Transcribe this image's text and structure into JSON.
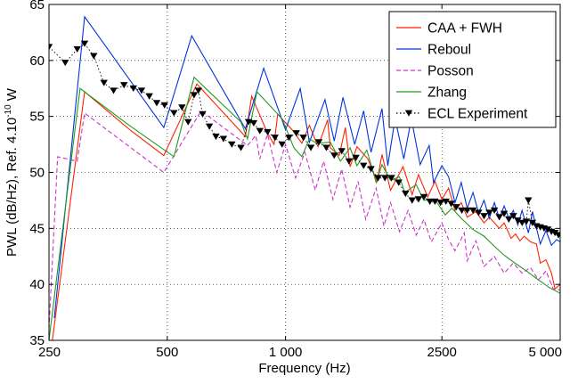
{
  "chart_data": {
    "type": "line",
    "xlabel": "Frequency (Hz)",
    "ylabel_prefix": "PWL (dB/Hz), Ref. 4.10",
    "ylabel_exp": "-10",
    "ylabel_suffix": " W",
    "x_scale": "log",
    "xlim": [
      250,
      5000
    ],
    "ylim": [
      35,
      65
    ],
    "grid": true,
    "legend_position": "top-right",
    "x_ticks": [
      {
        "value": 250,
        "label": "250"
      },
      {
        "value": 500,
        "label": "500"
      },
      {
        "value": 1000,
        "label": "1 000"
      },
      {
        "value": 2500,
        "label": "2500"
      },
      {
        "value": 5000,
        "label": "5 000"
      }
    ],
    "y_ticks": [
      {
        "value": 35,
        "label": "35"
      },
      {
        "value": 40,
        "label": "40"
      },
      {
        "value": 45,
        "label": "45"
      },
      {
        "value": 50,
        "label": "50"
      },
      {
        "value": 55,
        "label": "55"
      },
      {
        "value": 60,
        "label": "60"
      },
      {
        "value": 65,
        "label": "65"
      }
    ],
    "series": [
      {
        "name": "CAA + FWH",
        "color": "#ff2200",
        "dash": "",
        "marker": "none",
        "points": [
          [
            255,
            35
          ],
          [
            308,
            57.2
          ],
          [
            405,
            53.7
          ],
          [
            490,
            51.5
          ],
          [
            595,
            57.9
          ],
          [
            790,
            53.2
          ],
          [
            820,
            56.8
          ],
          [
            900,
            53.5
          ],
          [
            935,
            52.5
          ],
          [
            955,
            55.2
          ],
          [
            1040,
            53.8
          ],
          [
            1100,
            52.6
          ],
          [
            1150,
            54.2
          ],
          [
            1210,
            52.3
          ],
          [
            1280,
            54.7
          ],
          [
            1300,
            52.2
          ],
          [
            1370,
            51.5
          ],
          [
            1420,
            54
          ],
          [
            1460,
            50.5
          ],
          [
            1520,
            52.3
          ],
          [
            1620,
            51.2
          ],
          [
            1710,
            49.2
          ],
          [
            1760,
            51.6
          ],
          [
            1850,
            48.4
          ],
          [
            1990,
            50.5
          ],
          [
            2100,
            48
          ],
          [
            2180,
            49.8
          ],
          [
            2300,
            47.8
          ],
          [
            2400,
            49.2
          ],
          [
            2500,
            47.6
          ],
          [
            2600,
            48.6
          ],
          [
            2700,
            46.6
          ],
          [
            2800,
            47.3
          ],
          [
            2900,
            46
          ],
          [
            3050,
            46.5
          ],
          [
            3200,
            45.5
          ],
          [
            3300,
            46
          ],
          [
            3500,
            45
          ],
          [
            3600,
            45.5
          ],
          [
            3750,
            44.1
          ],
          [
            3850,
            44.5
          ],
          [
            3950,
            43.9
          ],
          [
            4050,
            44.3
          ],
          [
            4200,
            43.8
          ],
          [
            4350,
            43.6
          ],
          [
            4450,
            41.9
          ],
          [
            4600,
            42.2
          ],
          [
            4750,
            41
          ],
          [
            4850,
            39.6
          ],
          [
            5000,
            40
          ]
        ]
      },
      {
        "name": "Reboul",
        "color": "#0033dd",
        "dash": "",
        "marker": "none",
        "points": [
          [
            258,
            37
          ],
          [
            308,
            63.9
          ],
          [
            490,
            54
          ],
          [
            577,
            62.2
          ],
          [
            790,
            53.9
          ],
          [
            880,
            59.3
          ],
          [
            1000,
            53.8
          ],
          [
            1090,
            57.5
          ],
          [
            1150,
            52.7
          ],
          [
            1260,
            56.5
          ],
          [
            1330,
            52.8
          ],
          [
            1400,
            56.7
          ],
          [
            1500,
            52.5
          ],
          [
            1580,
            55.5
          ],
          [
            1650,
            51.8
          ],
          [
            1760,
            55.7
          ],
          [
            1820,
            50.6
          ],
          [
            1900,
            54.8
          ],
          [
            2000,
            51.2
          ],
          [
            2090,
            54.8
          ],
          [
            2200,
            50.7
          ],
          [
            2320,
            52.4
          ],
          [
            2380,
            49.1
          ],
          [
            2500,
            50.6
          ],
          [
            2600,
            49.6
          ],
          [
            2700,
            47.3
          ],
          [
            2800,
            49.1
          ],
          [
            2900,
            46.8
          ],
          [
            3000,
            48.2
          ],
          [
            3100,
            46.4
          ],
          [
            3200,
            47.5
          ],
          [
            3300,
            45.9
          ],
          [
            3400,
            47.3
          ],
          [
            3500,
            45.9
          ],
          [
            3600,
            47
          ],
          [
            3700,
            45.9
          ],
          [
            3800,
            46.6
          ],
          [
            3900,
            45.3
          ],
          [
            4000,
            46.6
          ],
          [
            4150,
            44.6
          ],
          [
            4250,
            46.5
          ],
          [
            4450,
            43.6
          ],
          [
            4600,
            44.8
          ],
          [
            4750,
            43.5
          ],
          [
            4900,
            44
          ],
          [
            5000,
            43.8
          ]
        ]
      },
      {
        "name": "Posson",
        "color": "#cc33cc",
        "dash": "5,3",
        "marker": "none",
        "points": [
          [
            250,
            36
          ],
          [
            263,
            51.4
          ],
          [
            295,
            51
          ],
          [
            308,
            55.3
          ],
          [
            490,
            50
          ],
          [
            610,
            55.5
          ],
          [
            800,
            52.4
          ],
          [
            840,
            53.3
          ],
          [
            860,
            51.2
          ],
          [
            900,
            53.4
          ],
          [
            950,
            50
          ],
          [
            1000,
            52.5
          ],
          [
            1060,
            49.5
          ],
          [
            1120,
            51.8
          ],
          [
            1190,
            48.4
          ],
          [
            1250,
            51
          ],
          [
            1320,
            47.6
          ],
          [
            1390,
            50.3
          ],
          [
            1460,
            46.9
          ],
          [
            1530,
            49.2
          ],
          [
            1600,
            45.8
          ],
          [
            1700,
            48.6
          ],
          [
            1780,
            45.2
          ],
          [
            1850,
            47.3
          ],
          [
            1950,
            44.7
          ],
          [
            2050,
            46.6
          ],
          [
            2150,
            44.4
          ],
          [
            2250,
            45.8
          ],
          [
            2350,
            43.8
          ],
          [
            2500,
            45.5
          ],
          [
            2600,
            44
          ],
          [
            2700,
            43
          ],
          [
            2850,
            44.6
          ],
          [
            2900,
            42.1
          ],
          [
            3050,
            43.9
          ],
          [
            3200,
            41.6
          ],
          [
            3400,
            42.5
          ],
          [
            3600,
            41
          ],
          [
            3800,
            41.9
          ],
          [
            4000,
            41
          ],
          [
            4200,
            41.5
          ],
          [
            4400,
            40.4
          ],
          [
            4600,
            41.2
          ],
          [
            4800,
            39.6
          ],
          [
            5000,
            39.5
          ]
        ]
      },
      {
        "name": "Zhang",
        "color": "#229922",
        "dash": "",
        "marker": "none",
        "points": [
          [
            250,
            35
          ],
          [
            300,
            57.5
          ],
          [
            400,
            54.2
          ],
          [
            520,
            51.4
          ],
          [
            585,
            58.5
          ],
          [
            770,
            54.5
          ],
          [
            800,
            53
          ],
          [
            845,
            57.2
          ],
          [
            980,
            54.8
          ],
          [
            1050,
            52.2
          ],
          [
            1100,
            51.4
          ],
          [
            1150,
            53
          ],
          [
            1200,
            52.6
          ],
          [
            1300,
            52.7
          ],
          [
            1380,
            51
          ],
          [
            1460,
            52.2
          ],
          [
            1520,
            50.6
          ],
          [
            1610,
            52
          ],
          [
            1700,
            49.1
          ],
          [
            1760,
            50.7
          ],
          [
            1850,
            49.3
          ],
          [
            1950,
            49.6
          ],
          [
            2010,
            48.2
          ],
          [
            2150,
            48.9
          ],
          [
            2250,
            47.5
          ],
          [
            2400,
            47.6
          ],
          [
            2550,
            46.2
          ],
          [
            2650,
            46.8
          ],
          [
            2800,
            45.9
          ],
          [
            3000,
            44.9
          ],
          [
            3200,
            44.3
          ],
          [
            3400,
            43.4
          ],
          [
            3600,
            42.6
          ],
          [
            3800,
            42
          ],
          [
            4100,
            41.2
          ],
          [
            4400,
            40.4
          ],
          [
            4700,
            39.7
          ],
          [
            5000,
            39.2
          ]
        ]
      },
      {
        "name": "ECL Experiment",
        "color": "#000000",
        "dash": "1.5,2.5",
        "marker": "triangle-down",
        "points": [
          [
            250,
            61.2
          ],
          [
            275,
            59.8
          ],
          [
            295,
            61
          ],
          [
            308,
            61.5
          ],
          [
            325,
            60.4
          ],
          [
            345,
            58
          ],
          [
            365,
            57.3
          ],
          [
            388,
            57.8
          ],
          [
            410,
            57.5
          ],
          [
            430,
            57.3
          ],
          [
            450,
            56.8
          ],
          [
            470,
            56.2
          ],
          [
            492,
            56
          ],
          [
            520,
            55.3
          ],
          [
            545,
            55.8
          ],
          [
            565,
            54.5
          ],
          [
            585,
            56.9
          ],
          [
            600,
            57.3
          ],
          [
            615,
            55.2
          ],
          [
            640,
            54.1
          ],
          [
            665,
            53.2
          ],
          [
            695,
            53
          ],
          [
            730,
            52.5
          ],
          [
            770,
            52.2
          ],
          [
            805,
            54.5
          ],
          [
            830,
            54.4
          ],
          [
            860,
            53.7
          ],
          [
            900,
            53.6
          ],
          [
            940,
            53.1
          ],
          [
            980,
            52.5
          ],
          [
            1020,
            53.1
          ],
          [
            1065,
            53.5
          ],
          [
            1110,
            53.1
          ],
          [
            1160,
            52.2
          ],
          [
            1215,
            52.7
          ],
          [
            1270,
            52.2
          ],
          [
            1330,
            51.5
          ],
          [
            1390,
            51.9
          ],
          [
            1450,
            51
          ],
          [
            1510,
            51.3
          ],
          [
            1580,
            50.6
          ],
          [
            1650,
            50.3
          ],
          [
            1720,
            49.5
          ],
          [
            1790,
            49.5
          ],
          [
            1860,
            49.5
          ],
          [
            1940,
            49.1
          ],
          [
            2020,
            48.1
          ],
          [
            2100,
            47.5
          ],
          [
            2180,
            47.6
          ],
          [
            2250,
            47.8
          ],
          [
            2330,
            47.4
          ],
          [
            2400,
            47.4
          ],
          [
            2480,
            47.3
          ],
          [
            2560,
            47.4
          ],
          [
            2640,
            47.2
          ],
          [
            2720,
            46.9
          ],
          [
            2810,
            46.6
          ],
          [
            2900,
            46.6
          ],
          [
            3000,
            46.6
          ],
          [
            3100,
            46.4
          ],
          [
            3200,
            46.1
          ],
          [
            3300,
            46.4
          ],
          [
            3400,
            46.6
          ],
          [
            3500,
            46
          ],
          [
            3600,
            46.3
          ],
          [
            3700,
            45.8
          ],
          [
            3800,
            46.1
          ],
          [
            3900,
            45.7
          ],
          [
            4000,
            45.5
          ],
          [
            4100,
            45.6
          ],
          [
            4150,
            47.5
          ],
          [
            4250,
            45.5
          ],
          [
            4350,
            45.2
          ],
          [
            4450,
            45.1
          ],
          [
            4550,
            45
          ],
          [
            4650,
            44.9
          ],
          [
            4750,
            44.7
          ],
          [
            4850,
            44.6
          ],
          [
            4950,
            44.4
          ]
        ]
      }
    ]
  }
}
